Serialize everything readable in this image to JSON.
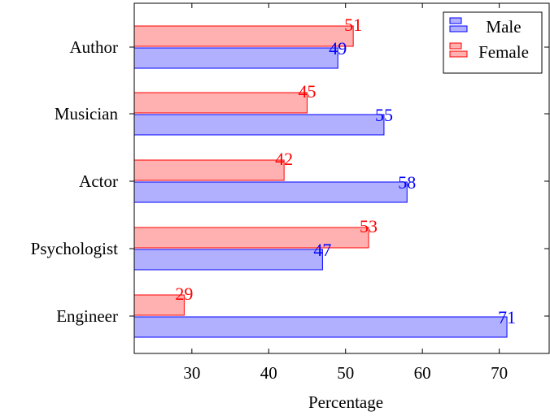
{
  "chart_data": {
    "type": "bar",
    "orientation": "horizontal",
    "categories": [
      "Author",
      "Musician",
      "Actor",
      "Psychologist",
      "Engineer"
    ],
    "series": [
      {
        "name": "Male",
        "values": [
          49,
          55,
          58,
          47,
          71
        ],
        "color": "#0000ff",
        "fill": "#b0b0ff"
      },
      {
        "name": "Female",
        "values": [
          51,
          45,
          42,
          53,
          29
        ],
        "color": "#ff0000",
        "fill": "#ffb0b0"
      }
    ],
    "xlabel": "Percentage",
    "ylabel": "",
    "title": "",
    "xlim": [
      22.5,
      76.5
    ],
    "xticks": [
      30,
      40,
      50,
      60,
      70
    ],
    "grid": false,
    "legend_position": "top-right",
    "data_labels": true
  }
}
